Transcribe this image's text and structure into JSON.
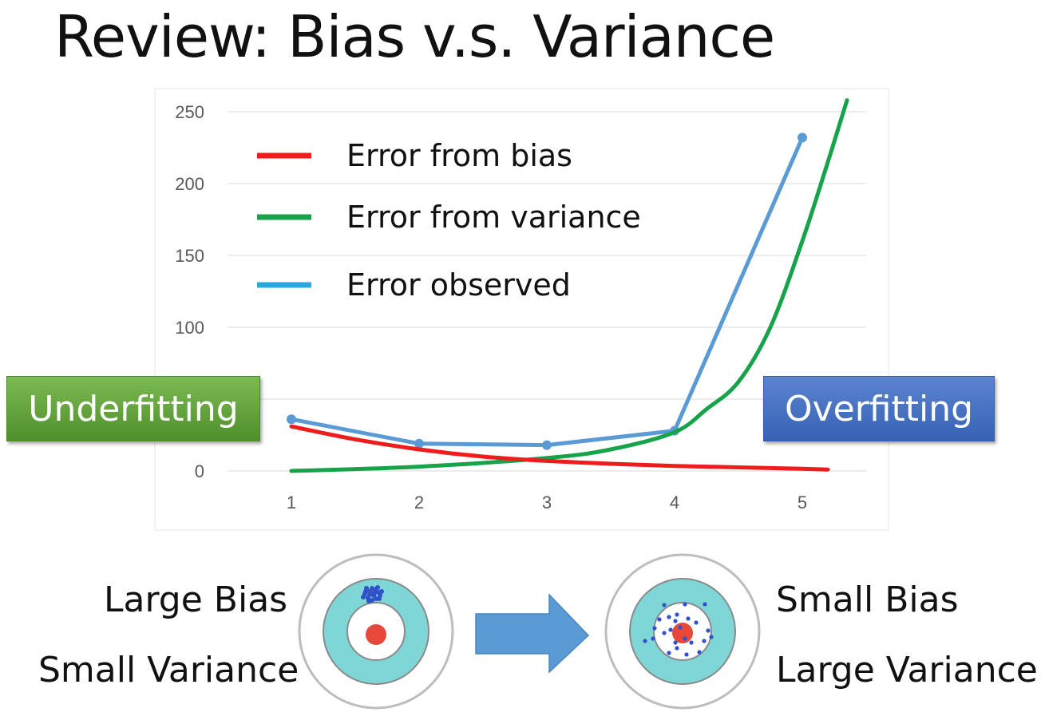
{
  "title": "Review: Bias v.s. Variance",
  "colors": {
    "bias": "#ee1c1c",
    "variance": "#17a34a",
    "observed": "#5b9bd5",
    "grid": "#d9d9d9",
    "axis_text": "#595959",
    "target_outer": "#ffffff",
    "target_ring": "#7fd6d6",
    "target_center": "#e8483a",
    "dots": "#2f52c9",
    "arrow": "#5b9bd5"
  },
  "chart_data": {
    "type": "line",
    "title": "",
    "xlabel": "",
    "ylabel": "",
    "xlim": [
      0.6,
      5.7
    ],
    "ylim": [
      0,
      250
    ],
    "x_ticks": [
      1,
      2,
      3,
      4,
      5
    ],
    "y_ticks": [
      0,
      50,
      100,
      150,
      200,
      250
    ],
    "y_tick_labels": [
      "0",
      "",
      "100",
      "150",
      "200",
      "250"
    ],
    "grid": true,
    "legend_position": "top-left",
    "series": [
      {
        "name": "Error from bias",
        "color": "#ee1c1c",
        "smooth": true,
        "markers": false,
        "x": [
          1,
          1.5,
          2,
          2.5,
          3,
          3.5,
          4,
          4.5,
          5,
          5.2
        ],
        "y": [
          31,
          22,
          15,
          10,
          7,
          5,
          3.5,
          2.5,
          1.5,
          1
        ]
      },
      {
        "name": "Error from variance",
        "color": "#17a34a",
        "smooth": true,
        "markers": false,
        "x": [
          1,
          2,
          3,
          3.5,
          4,
          4.25,
          4.5,
          4.75,
          5,
          5.2,
          5.35
        ],
        "y": [
          0,
          3,
          9,
          15,
          27,
          43,
          62,
          100,
          160,
          215,
          258
        ]
      },
      {
        "name": "Error observed",
        "color": "#5b9bd5",
        "smooth": false,
        "markers": true,
        "x": [
          1,
          2,
          3,
          4,
          5
        ],
        "y": [
          36,
          19,
          18,
          28,
          232
        ]
      }
    ]
  },
  "tags": {
    "underfitting": "Underfitting",
    "overfitting": "Overfitting"
  },
  "targets": {
    "left_label_1": "Large Bias",
    "left_label_2": "Small Variance",
    "right_label_1": "Small Bias",
    "right_label_2": "Large Variance"
  }
}
